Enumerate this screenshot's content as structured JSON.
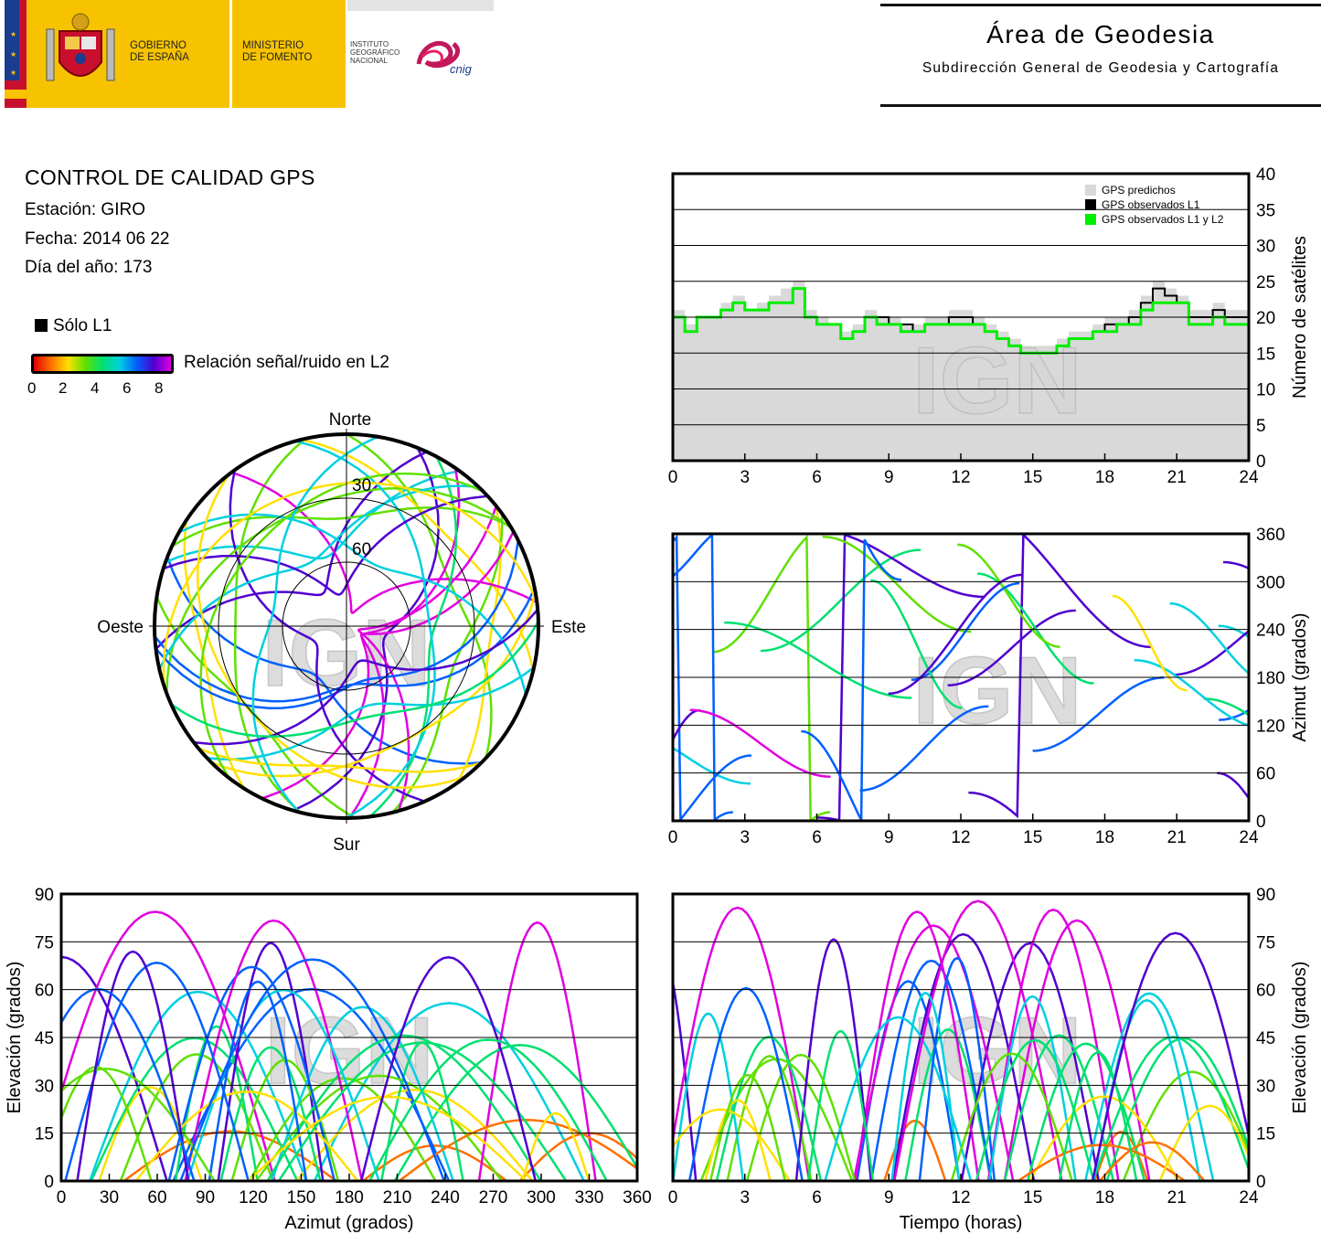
{
  "header": {
    "gobierno": "GOBIERNO\nDE ESPAÑA",
    "ministerio": "MINISTERIO\nDE FOMENTO",
    "instituto": "INSTITUTO\nGEOGRÁFICO\nNACIONAL",
    "cnig": "cnig",
    "area_title": "Área de Geodesia",
    "area_subtitle": "Subdirección General de Geodesia y Cartografía"
  },
  "report": {
    "title": "CONTROL DE CALIDAD GPS",
    "station": "Estación: GIRO",
    "date": "Fecha: 2014 06 22",
    "doy": "Día del año: 173"
  },
  "legend": {
    "l1_only": "Sólo L1",
    "snr_label": "Relación señal/ruido en L2",
    "snr_ticks": [
      "0",
      "2",
      "4",
      "6",
      "8"
    ]
  },
  "watermark": "IGN",
  "colors": {
    "predicted": "#d9d9d9",
    "observed_l1": "#000000",
    "observed_l1l2": "#00ee00",
    "grid": "#000000"
  },
  "chart_data": [
    {
      "id": "satellites",
      "type": "area",
      "xlim": [
        0,
        24
      ],
      "ylim": [
        0,
        40
      ],
      "xticks": [
        "0",
        "3",
        "6",
        "9",
        "12",
        "15",
        "18",
        "21",
        "24"
      ],
      "yticks": [
        "0",
        "5",
        "10",
        "15",
        "20",
        "25",
        "30",
        "35",
        "40"
      ],
      "ylabel": "Número de satélites",
      "legend": [
        "GPS predichos",
        "GPS observados L1",
        "GPS observados L1 y L2"
      ],
      "x": [
        0,
        0.5,
        1,
        1.5,
        2,
        2.5,
        3,
        3.5,
        4,
        4.5,
        5,
        5.5,
        6,
        6.5,
        7,
        7.5,
        8,
        8.5,
        9,
        9.5,
        10,
        10.5,
        11,
        11.5,
        12,
        12.5,
        13,
        13.5,
        14,
        14.5,
        15,
        15.5,
        16,
        16.5,
        17,
        17.5,
        18,
        18.5,
        19,
        19.5,
        20,
        20.5,
        21,
        21.5,
        22,
        22.5,
        23,
        23.5,
        24
      ],
      "series": [
        {
          "name": "GPS predichos",
          "values": [
            21,
            19,
            20,
            20,
            22,
            23,
            21,
            22,
            23,
            24,
            25,
            21,
            20,
            19,
            18,
            19,
            21,
            20,
            20,
            19,
            19,
            20,
            20,
            21,
            21,
            20,
            19,
            18,
            17,
            16,
            16,
            16,
            17,
            18,
            18,
            19,
            20,
            20,
            21,
            23,
            25,
            24,
            23,
            21,
            21,
            22,
            21,
            21,
            21
          ]
        },
        {
          "name": "GPS observados L1",
          "values": [
            20,
            18,
            20,
            20,
            21,
            22,
            21,
            21,
            22,
            22,
            24,
            20,
            19,
            19,
            17,
            18,
            20,
            20,
            19,
            19,
            18,
            19,
            19,
            20,
            20,
            19,
            18,
            17,
            16,
            15,
            15,
            15,
            16,
            17,
            17,
            18,
            19,
            19,
            20,
            22,
            24,
            23,
            22,
            20,
            20,
            21,
            20,
            20,
            20
          ]
        },
        {
          "name": "GPS observados L1 y L2",
          "values": [
            20,
            18,
            20,
            20,
            21,
            22,
            21,
            21,
            22,
            22,
            24,
            20,
            19,
            19,
            17,
            18,
            20,
            19,
            19,
            18,
            18,
            19,
            19,
            19,
            19,
            19,
            18,
            17,
            16,
            15,
            15,
            15,
            16,
            17,
            17,
            18,
            18,
            19,
            19,
            21,
            22,
            22,
            22,
            19,
            19,
            20,
            19,
            19,
            19
          ]
        }
      ]
    },
    {
      "id": "azimut",
      "type": "scatter",
      "xlim": [
        0,
        24
      ],
      "ylim": [
        0,
        360
      ],
      "xticks": [
        "0",
        "3",
        "6",
        "9",
        "12",
        "15",
        "18",
        "21",
        "24"
      ],
      "yticks": [
        "0",
        "60",
        "120",
        "180",
        "240",
        "300",
        "360"
      ],
      "ylabel": "Azimut (grados)"
    },
    {
      "id": "skyplot",
      "type": "scatter",
      "rings": [
        "30",
        "60"
      ],
      "directions": {
        "n": "Norte",
        "s": "Sur",
        "e": "Este",
        "w": "Oeste"
      }
    },
    {
      "id": "elev_az",
      "type": "scatter",
      "xlim": [
        0,
        360
      ],
      "ylim": [
        0,
        90
      ],
      "xticks": [
        "0",
        "30",
        "60",
        "90",
        "120",
        "150",
        "180",
        "210",
        "240",
        "270",
        "300",
        "330",
        "360"
      ],
      "yticks": [
        "0",
        "15",
        "30",
        "45",
        "60",
        "75",
        "90"
      ],
      "xlabel": "Azimut (grados)",
      "ylabel": "Elevación (grados)"
    },
    {
      "id": "elev_time",
      "type": "scatter",
      "xlim": [
        0,
        24
      ],
      "ylim": [
        0,
        90
      ],
      "xticks": [
        "0",
        "3",
        "6",
        "9",
        "12",
        "15",
        "18",
        "21",
        "24"
      ],
      "yticks": [
        "0",
        "15",
        "30",
        "45",
        "60",
        "75",
        "90"
      ],
      "xlabel": "Tiempo (horas)",
      "ylabel": "Elevación (grados)"
    }
  ]
}
